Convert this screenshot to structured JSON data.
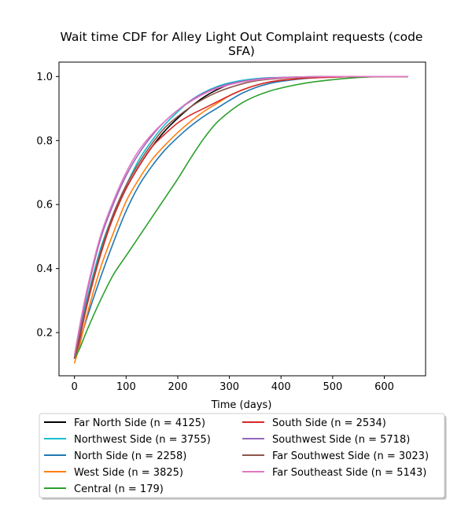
{
  "chart_data": {
    "type": "line",
    "title": "Wait time CDF for Alley Light Out Complaint  requests (code SFA)",
    "title_lines": [
      "Wait time CDF for Alley Light Out Complaint  requests (code",
      "SFA)"
    ],
    "xlabel": "Time (days)",
    "ylabel": "",
    "xlim": [
      -30,
      680
    ],
    "ylim": [
      0.065,
      1.045
    ],
    "xticks": [
      0,
      100,
      200,
      300,
      400,
      500,
      600
    ],
    "yticks": [
      0.2,
      0.4,
      0.6,
      0.8,
      1.0
    ],
    "xtick_labels": [
      "0",
      "100",
      "200",
      "300",
      "400",
      "500",
      "600"
    ],
    "ytick_labels": [
      "0.2",
      "0.4",
      "0.6",
      "0.8",
      "1.0"
    ],
    "grid": false,
    "legend_position": "below",
    "x": [
      0,
      10,
      25,
      50,
      75,
      100,
      125,
      150,
      175,
      200,
      225,
      250,
      275,
      300,
      325,
      350,
      375,
      400,
      450,
      500,
      550,
      600,
      645
    ],
    "series": [
      {
        "name": "Far North Side (n = 4125)",
        "color": "#000000",
        "values": [
          0.12,
          0.19,
          0.3,
          0.45,
          0.56,
          0.65,
          0.72,
          0.78,
          0.83,
          0.87,
          0.905,
          0.935,
          0.958,
          0.975,
          0.985,
          0.991,
          0.994,
          0.996,
          0.998,
          0.999,
          1.0,
          1.0,
          1.0
        ]
      },
      {
        "name": "Northwest Side (n = 3755)",
        "color": "#17becf",
        "values": [
          0.12,
          0.2,
          0.31,
          0.46,
          0.57,
          0.66,
          0.74,
          0.8,
          0.85,
          0.89,
          0.925,
          0.95,
          0.968,
          0.98,
          0.988,
          0.993,
          0.996,
          0.997,
          0.999,
          1.0,
          1.0,
          1.0,
          1.0
        ]
      },
      {
        "name": "North Side (n = 2258)",
        "color": "#1f77b4",
        "values": [
          0.12,
          0.17,
          0.25,
          0.37,
          0.48,
          0.58,
          0.66,
          0.72,
          0.77,
          0.81,
          0.845,
          0.875,
          0.9,
          0.925,
          0.948,
          0.965,
          0.977,
          0.985,
          0.994,
          0.998,
          1.0,
          1.0,
          1.0
        ]
      },
      {
        "name": "West Side (n = 3825)",
        "color": "#ff7f0e",
        "values": [
          0.105,
          0.16,
          0.26,
          0.4,
          0.51,
          0.61,
          0.68,
          0.74,
          0.785,
          0.825,
          0.86,
          0.89,
          0.915,
          0.94,
          0.958,
          0.972,
          0.982,
          0.988,
          0.995,
          0.998,
          1.0,
          1.0,
          1.0
        ]
      },
      {
        "name": "Central (n = 179)",
        "color": "#2ca02c",
        "values": [
          0.12,
          0.15,
          0.21,
          0.3,
          0.38,
          0.44,
          0.5,
          0.56,
          0.62,
          0.68,
          0.745,
          0.805,
          0.855,
          0.89,
          0.918,
          0.938,
          0.953,
          0.964,
          0.98,
          0.99,
          0.997,
          1.0,
          1.0
        ]
      },
      {
        "name": "South Side (n = 2534)",
        "color": "#d62728",
        "values": [
          0.12,
          0.18,
          0.29,
          0.44,
          0.56,
          0.65,
          0.72,
          0.78,
          0.82,
          0.855,
          0.88,
          0.9,
          0.92,
          0.94,
          0.958,
          0.972,
          0.982,
          0.988,
          0.995,
          0.998,
          1.0,
          1.0,
          1.0
        ]
      },
      {
        "name": "Southwest Side (n = 5718)",
        "color": "#9467bd",
        "values": [
          0.12,
          0.21,
          0.33,
          0.49,
          0.6,
          0.69,
          0.76,
          0.815,
          0.86,
          0.895,
          0.925,
          0.948,
          0.965,
          0.977,
          0.985,
          0.991,
          0.995,
          0.997,
          0.999,
          1.0,
          1.0,
          1.0,
          1.0
        ]
      },
      {
        "name": "Far Southwest Side (n = 3023)",
        "color": "#8c564b",
        "values": [
          0.12,
          0.19,
          0.3,
          0.45,
          0.57,
          0.66,
          0.73,
          0.79,
          0.84,
          0.875,
          0.905,
          0.93,
          0.95,
          0.965,
          0.977,
          0.986,
          0.991,
          0.994,
          0.998,
          1.0,
          1.0,
          1.0,
          1.0
        ]
      },
      {
        "name": "Far Southeast Side (n = 5143)",
        "color": "#e377c2",
        "values": [
          0.13,
          0.22,
          0.34,
          0.5,
          0.61,
          0.7,
          0.77,
          0.82,
          0.86,
          0.895,
          0.922,
          0.945,
          0.962,
          0.974,
          0.983,
          0.989,
          0.993,
          0.996,
          0.999,
          1.0,
          1.0,
          1.0,
          1.0
        ]
      }
    ]
  }
}
